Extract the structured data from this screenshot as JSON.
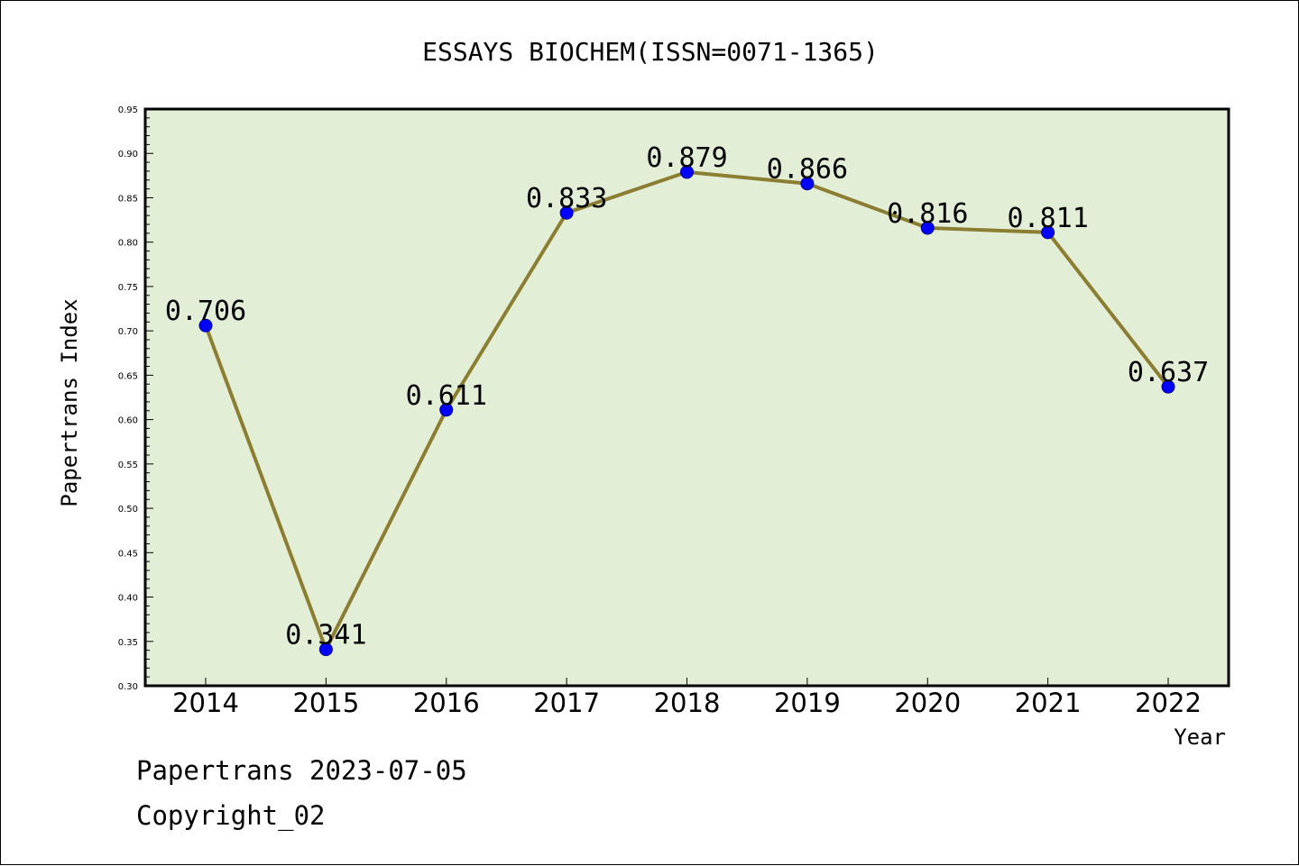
{
  "chart_data": {
    "type": "line",
    "title": "ESSAYS BIOCHEM(ISSN=0071-1365)",
    "xlabel": "Year",
    "ylabel": "Papertrans Index",
    "x": [
      "2014",
      "2015",
      "2016",
      "2017",
      "2018",
      "2019",
      "2020",
      "2021",
      "2022"
    ],
    "series": [
      {
        "values": [
          0.706,
          0.341,
          0.611,
          0.833,
          0.879,
          0.866,
          0.816,
          0.811,
          0.637
        ],
        "data_labels": [
          "0.706",
          "0.341",
          "0.611",
          "0.833",
          "0.879",
          "0.866",
          "0.816",
          "0.811",
          "0.637"
        ],
        "line_color": "#8b7d32",
        "marker_color": "#0000ff"
      }
    ],
    "ylim": [
      0.3,
      0.95
    ],
    "yticks": [
      "0.30",
      "0.35",
      "0.40",
      "0.45",
      "0.50",
      "0.55",
      "0.60",
      "0.65",
      "0.70",
      "0.75",
      "0.80",
      "0.85",
      "0.90",
      "0.95"
    ],
    "grid": false,
    "legend": "none",
    "plot_background": "#e2efd6"
  },
  "footer": {
    "line1": "Papertrans 2023-07-05",
    "line2": "Copyright_02"
  }
}
